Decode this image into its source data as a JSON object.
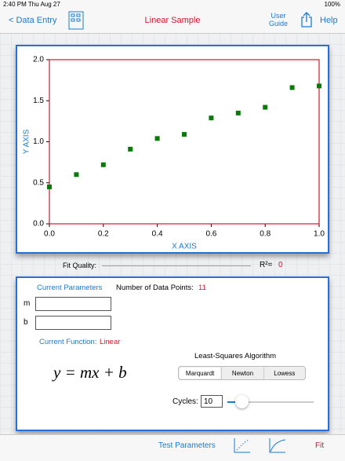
{
  "status_bar": {
    "time": "2:40 PM  Thu Aug 27",
    "battery": "100%"
  },
  "nav_bar": {
    "back": "< Data Entry",
    "title": "Linear Sample",
    "user_guide": "User Guide",
    "help": "Help"
  },
  "chart_data": {
    "type": "scatter",
    "xlabel": "X AXIS",
    "ylabel": "Y AXIS",
    "x": [
      0.0,
      0.1,
      0.2,
      0.3,
      0.4,
      0.5,
      0.6,
      0.7,
      0.8,
      0.9,
      1.0
    ],
    "values": [
      0.45,
      0.6,
      0.72,
      0.91,
      1.04,
      1.09,
      1.29,
      1.35,
      1.42,
      1.66,
      1.68
    ],
    "color": "#0a7a0a",
    "frame_color": "#e0102a",
    "label_color": "#1a7ad6",
    "xlim": [
      0,
      1
    ],
    "ylim": [
      0,
      2
    ],
    "xticks": [
      {
        "value": 0,
        "label": "0.0"
      },
      0.2,
      0.4,
      0.6,
      0.8,
      {
        "value": 1,
        "label": "1.0"
      }
    ],
    "yticks": [
      {
        "value": 0,
        "label": "0.0"
      },
      0.5,
      {
        "value": 1,
        "label": "1.0"
      },
      1.5,
      {
        "value": 2,
        "label": "2.0"
      }
    ]
  },
  "fit_quality": {
    "label": "Fit Quality:",
    "r_squared_label": "R²=",
    "r_squared": 0
  },
  "parameters": {
    "current_parameters": "Current Parameters",
    "data_points_label": "Number of Data Points:",
    "data_points": 11,
    "m_label": "m",
    "b_label": "b",
    "current_function_label": "Current Function:",
    "current_function": "Linear",
    "equation": "y = mx + b"
  },
  "algorithm": {
    "title": "Least-Squares Algorithm",
    "options": [
      "Marquardt",
      "Newton",
      "Lowess"
    ],
    "cycles_label": "Cycles:",
    "cycles": 10
  },
  "toolbar": {
    "test_parameters": "Test Parameters",
    "fit": "Fit"
  }
}
